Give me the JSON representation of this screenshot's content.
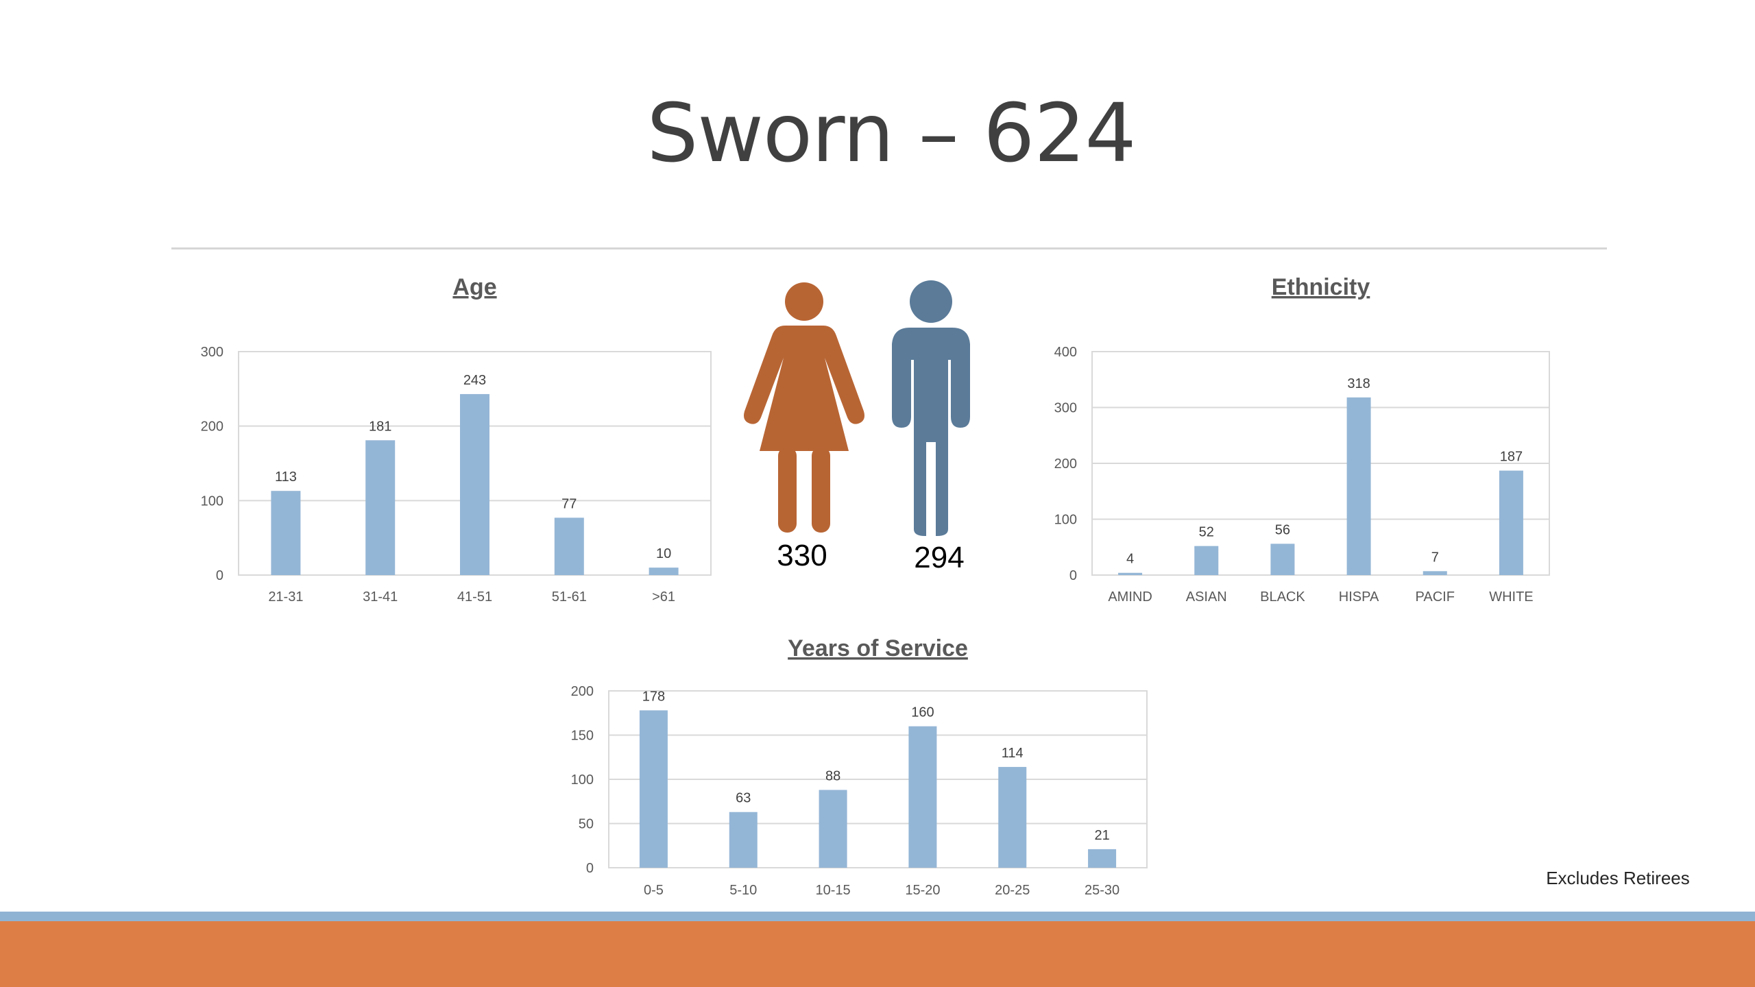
{
  "slide": {
    "title": "Sworn – 624",
    "footnote": "Excludes Retirees"
  },
  "colors": {
    "bar": "#94b6d6",
    "female": "#b86534",
    "male": "#5b7b99",
    "band_blue": "#8fb3d3",
    "band_orange": "#dd7e46"
  },
  "gender": {
    "female_icon": "female-person-icon",
    "male_icon": "male-person-icon",
    "female_count": "330",
    "male_count": "294"
  },
  "chart_data": [
    {
      "id": "age",
      "type": "bar",
      "title": "Age",
      "categories": [
        "21-31",
        "31-41",
        "41-51",
        "51-61",
        ">61"
      ],
      "values": [
        113,
        181,
        243,
        77,
        10
      ],
      "ylim": [
        0,
        300
      ],
      "yticks": [
        0,
        100,
        200,
        300
      ],
      "grid": true
    },
    {
      "id": "ethnicity",
      "type": "bar",
      "title": "Ethnicity",
      "categories": [
        "AMIND",
        "ASIAN",
        "BLACK",
        "HISPA",
        "PACIF",
        "WHITE"
      ],
      "values": [
        4,
        52,
        56,
        318,
        7,
        187
      ],
      "ylim": [
        0,
        400
      ],
      "yticks": [
        0,
        100,
        200,
        300,
        400
      ],
      "grid": true
    },
    {
      "id": "service",
      "type": "bar",
      "title": "Years of Service",
      "categories": [
        "0-5",
        "5-10",
        "10-15",
        "15-20",
        "20-25",
        "25-30"
      ],
      "values": [
        178,
        63,
        88,
        160,
        114,
        21
      ],
      "ylim": [
        0,
        200
      ],
      "yticks": [
        0,
        50,
        100,
        150,
        200
      ],
      "grid": true
    }
  ]
}
